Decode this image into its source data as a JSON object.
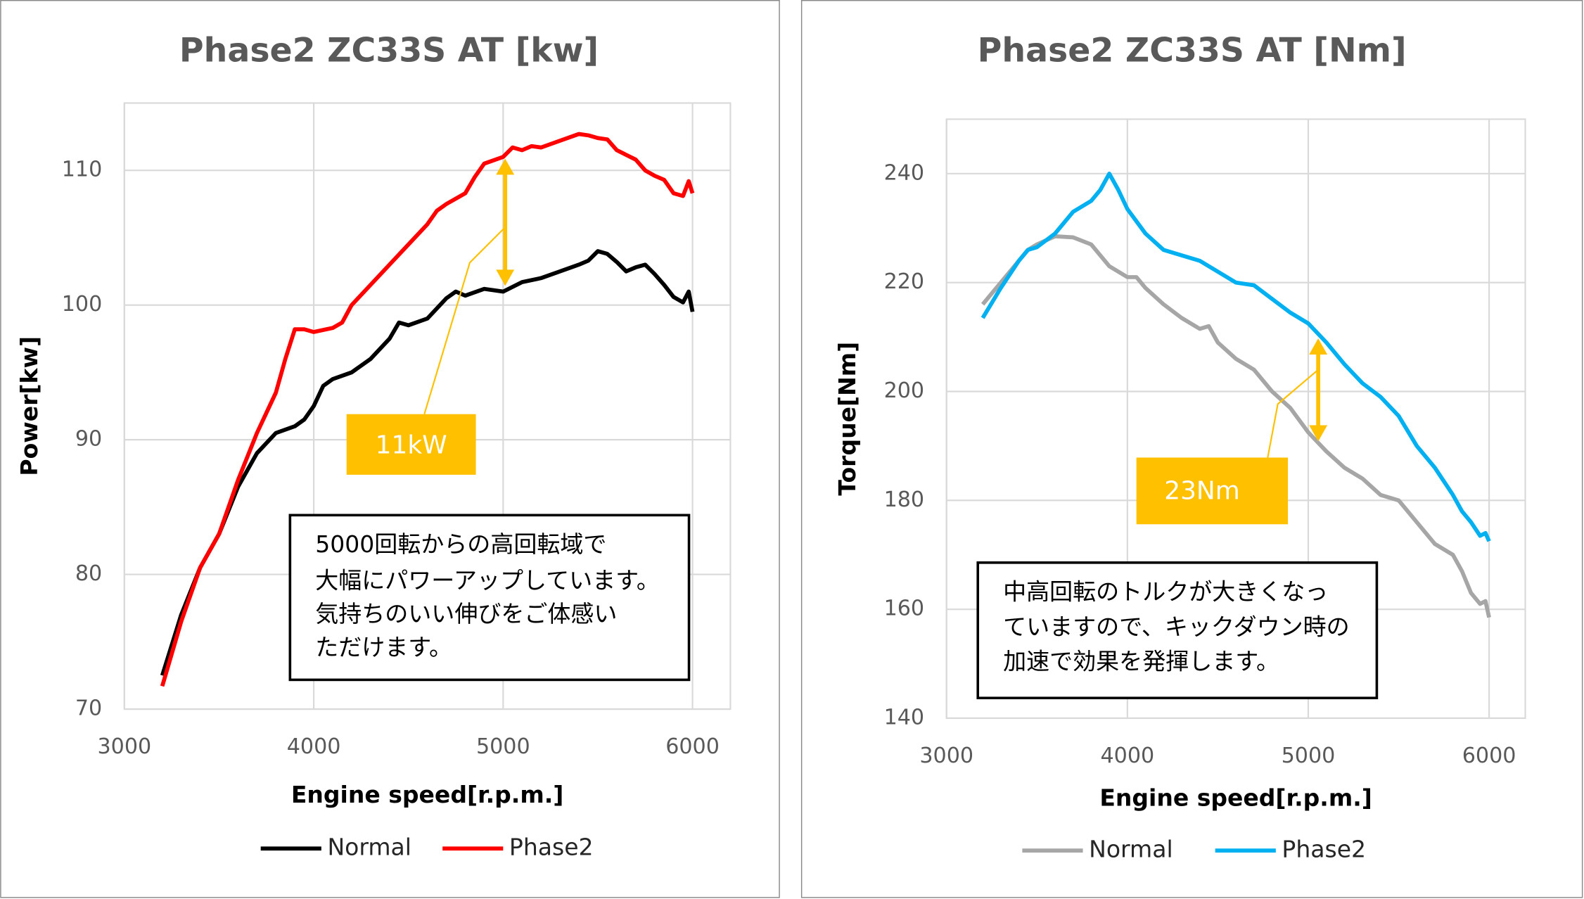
{
  "chart_data": [
    {
      "type": "line",
      "title": "Phase2 ZC33S AT [kw]",
      "xlabel": "Engine speed[r.p.m.]",
      "ylabel": "Power[kw]",
      "xlim": [
        3000,
        6200
      ],
      "xticks": [
        3000,
        4000,
        5000,
        6000
      ],
      "ylim": [
        70,
        115
      ],
      "yticks": [
        70,
        80,
        90,
        100,
        110
      ],
      "grid": true,
      "legend": "bottom",
      "annotation": "11kW",
      "note": [
        "5000回転からの高回転域で",
        "大幅にパワーアップしています。",
        "気持ちのいい伸びをご体感い",
        "ただけます。"
      ],
      "series": [
        {
          "name": "Normal",
          "color": "#000000",
          "x": [
            3200,
            3300,
            3400,
            3500,
            3600,
            3700,
            3800,
            3900,
            3950,
            4000,
            4050,
            4100,
            4200,
            4300,
            4400,
            4450,
            4500,
            4600,
            4700,
            4750,
            4800,
            4900,
            5000,
            5100,
            5200,
            5300,
            5400,
            5450,
            5500,
            5550,
            5600,
            5650,
            5700,
            5750,
            5800,
            5850,
            5900,
            5950,
            5980,
            6000
          ],
          "values": [
            72.5,
            77,
            80.5,
            83,
            86.5,
            89,
            90.5,
            91,
            91.5,
            92.5,
            94,
            94.5,
            95,
            96,
            97.5,
            98.7,
            98.5,
            99,
            100.5,
            101,
            100.7,
            101.2,
            101,
            101.7,
            102,
            102.5,
            103,
            103.3,
            104,
            103.8,
            103.2,
            102.5,
            102.8,
            103,
            102.3,
            101.5,
            100.6,
            100.2,
            101,
            99.5
          ]
        },
        {
          "name": "Phase2",
          "color": "#ff0000",
          "x": [
            3200,
            3300,
            3400,
            3500,
            3600,
            3700,
            3800,
            3850,
            3900,
            3950,
            4000,
            4100,
            4150,
            4200,
            4300,
            4400,
            4500,
            4600,
            4650,
            4700,
            4800,
            4850,
            4900,
            5000,
            5050,
            5100,
            5150,
            5200,
            5300,
            5400,
            5450,
            5500,
            5550,
            5600,
            5700,
            5750,
            5800,
            5850,
            5900,
            5950,
            5980,
            6000
          ],
          "values": [
            71.7,
            76.5,
            80.5,
            83,
            87,
            90.5,
            93.5,
            96,
            98.2,
            98.2,
            98,
            98.3,
            98.7,
            100,
            101.5,
            103,
            104.5,
            106,
            107,
            107.5,
            108.3,
            109.5,
            110.5,
            111,
            111.7,
            111.5,
            111.8,
            111.7,
            112.2,
            112.7,
            112.6,
            112.4,
            112.3,
            111.5,
            110.8,
            110,
            109.6,
            109.3,
            108.3,
            108.1,
            109.2,
            108.3
          ]
        }
      ]
    },
    {
      "type": "line",
      "title": "Phase2 ZC33S AT [Nm]",
      "xlabel": "Engine speed[r.p.m.]",
      "ylabel": "Torque[Nm]",
      "xlim": [
        3000,
        6200
      ],
      "xticks": [
        3000,
        4000,
        5000,
        6000
      ],
      "ylim": [
        140,
        250
      ],
      "yticks": [
        140,
        160,
        180,
        200,
        220,
        240
      ],
      "grid": true,
      "legend": "bottom",
      "annotation": "23Nm",
      "note": [
        "中高回転のトルクが大きくなっ",
        "ていますので、キックダウン時の",
        "加速で効果を発揮します。"
      ],
      "series": [
        {
          "name": "Normal",
          "color": "#a6a6a6",
          "x": [
            3200,
            3300,
            3400,
            3450,
            3500,
            3600,
            3700,
            3800,
            3900,
            4000,
            4050,
            4100,
            4200,
            4300,
            4400,
            4450,
            4500,
            4600,
            4700,
            4800,
            4900,
            5000,
            5100,
            5200,
            5300,
            5400,
            5500,
            5600,
            5700,
            5800,
            5850,
            5900,
            5950,
            5980,
            6000
          ],
          "values": [
            216,
            220,
            224,
            226,
            227,
            228.5,
            228.3,
            227,
            223,
            221,
            221,
            219,
            216,
            213.5,
            211.5,
            212,
            209,
            206,
            204,
            200,
            197,
            192.5,
            189,
            186,
            184,
            181,
            180,
            176,
            172,
            170,
            167,
            163,
            161,
            161.5,
            158.5
          ]
        },
        {
          "name": "Phase2",
          "color": "#00b0f0",
          "x": [
            3200,
            3300,
            3400,
            3450,
            3500,
            3600,
            3700,
            3800,
            3850,
            3900,
            3950,
            4000,
            4100,
            4200,
            4300,
            4400,
            4500,
            4600,
            4700,
            4800,
            4900,
            5000,
            5100,
            5200,
            5300,
            5400,
            5500,
            5600,
            5700,
            5800,
            5850,
            5900,
            5950,
            5980,
            6000
          ],
          "values": [
            213.5,
            219,
            224,
            226,
            226.5,
            229,
            233,
            235,
            237,
            240,
            237,
            233.5,
            229,
            226,
            225,
            224,
            222,
            220,
            219.5,
            217,
            214.5,
            212.5,
            209,
            205,
            201.5,
            199,
            195.5,
            190,
            186,
            181,
            178,
            176,
            173.5,
            174,
            172.5
          ]
        }
      ]
    }
  ]
}
